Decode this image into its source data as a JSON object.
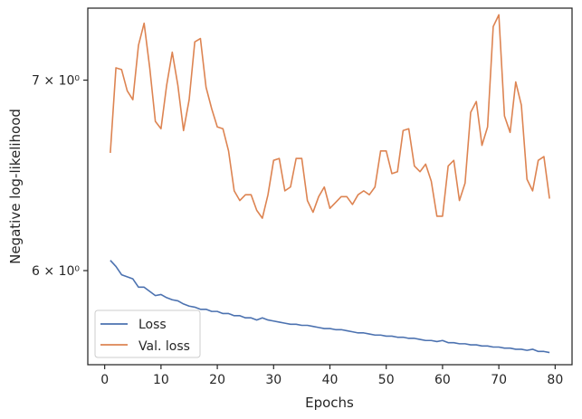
{
  "chart_data": {
    "type": "line",
    "xlabel": "Epochs",
    "ylabel": "Negative log-likelihood",
    "yscale": "log",
    "xlim": [
      -3,
      83
    ],
    "ylim": [
      5.56,
      7.42
    ],
    "x_ticks": [
      0,
      10,
      20,
      30,
      40,
      50,
      60,
      70,
      80
    ],
    "x_tick_labels": [
      "0",
      "10",
      "20",
      "30",
      "40",
      "50",
      "60",
      "70",
      "80"
    ],
    "y_ticks": [
      6,
      7
    ],
    "y_tick_labels": [
      "6 × 10⁰",
      "7 × 10⁰"
    ],
    "grid": false,
    "legend_position": "lower-left",
    "x": [
      1,
      2,
      3,
      4,
      5,
      6,
      7,
      8,
      9,
      10,
      11,
      12,
      13,
      14,
      15,
      16,
      17,
      18,
      19,
      20,
      21,
      22,
      23,
      24,
      25,
      26,
      27,
      28,
      29,
      30,
      31,
      32,
      33,
      34,
      35,
      36,
      37,
      38,
      39,
      40,
      41,
      42,
      43,
      44,
      45,
      46,
      47,
      48,
      49,
      50,
      51,
      52,
      53,
      54,
      55,
      56,
      57,
      58,
      59,
      60,
      61,
      62,
      63,
      64,
      65,
      66,
      67,
      68,
      69,
      70,
      71,
      72,
      73,
      74,
      75,
      76,
      77,
      78,
      79
    ],
    "series": [
      {
        "name": "Loss",
        "color": "#4c72b0",
        "values": [
          6.05,
          6.02,
          5.98,
          5.97,
          5.96,
          5.92,
          5.92,
          5.9,
          5.88,
          5.885,
          5.87,
          5.86,
          5.855,
          5.84,
          5.83,
          5.825,
          5.815,
          5.815,
          5.805,
          5.805,
          5.795,
          5.795,
          5.785,
          5.785,
          5.775,
          5.775,
          5.765,
          5.775,
          5.765,
          5.76,
          5.755,
          5.75,
          5.745,
          5.745,
          5.74,
          5.74,
          5.735,
          5.73,
          5.725,
          5.725,
          5.72,
          5.72,
          5.715,
          5.71,
          5.705,
          5.705,
          5.7,
          5.695,
          5.695,
          5.69,
          5.69,
          5.685,
          5.685,
          5.68,
          5.68,
          5.675,
          5.67,
          5.67,
          5.665,
          5.67,
          5.66,
          5.66,
          5.655,
          5.655,
          5.65,
          5.65,
          5.645,
          5.645,
          5.64,
          5.64,
          5.635,
          5.635,
          5.63,
          5.63,
          5.625,
          5.63,
          5.62,
          5.62,
          5.615
        ]
      },
      {
        "name": "Val. loss",
        "color": "#dd8452",
        "values": [
          6.6,
          7.07,
          7.06,
          6.94,
          6.89,
          7.2,
          7.33,
          7.07,
          6.77,
          6.73,
          6.97,
          7.16,
          6.97,
          6.72,
          6.89,
          7.22,
          7.24,
          6.96,
          6.84,
          6.74,
          6.73,
          6.61,
          6.4,
          6.35,
          6.38,
          6.38,
          6.3,
          6.26,
          6.38,
          6.56,
          6.57,
          6.4,
          6.42,
          6.57,
          6.57,
          6.35,
          6.29,
          6.37,
          6.42,
          6.31,
          6.34,
          6.37,
          6.37,
          6.33,
          6.38,
          6.4,
          6.38,
          6.42,
          6.61,
          6.61,
          6.49,
          6.5,
          6.72,
          6.73,
          6.53,
          6.5,
          6.54,
          6.45,
          6.27,
          6.27,
          6.53,
          6.56,
          6.35,
          6.44,
          6.82,
          6.88,
          6.64,
          6.74,
          7.31,
          7.38,
          6.8,
          6.71,
          6.99,
          6.86,
          6.46,
          6.4,
          6.56,
          6.58,
          6.36
        ]
      }
    ]
  }
}
